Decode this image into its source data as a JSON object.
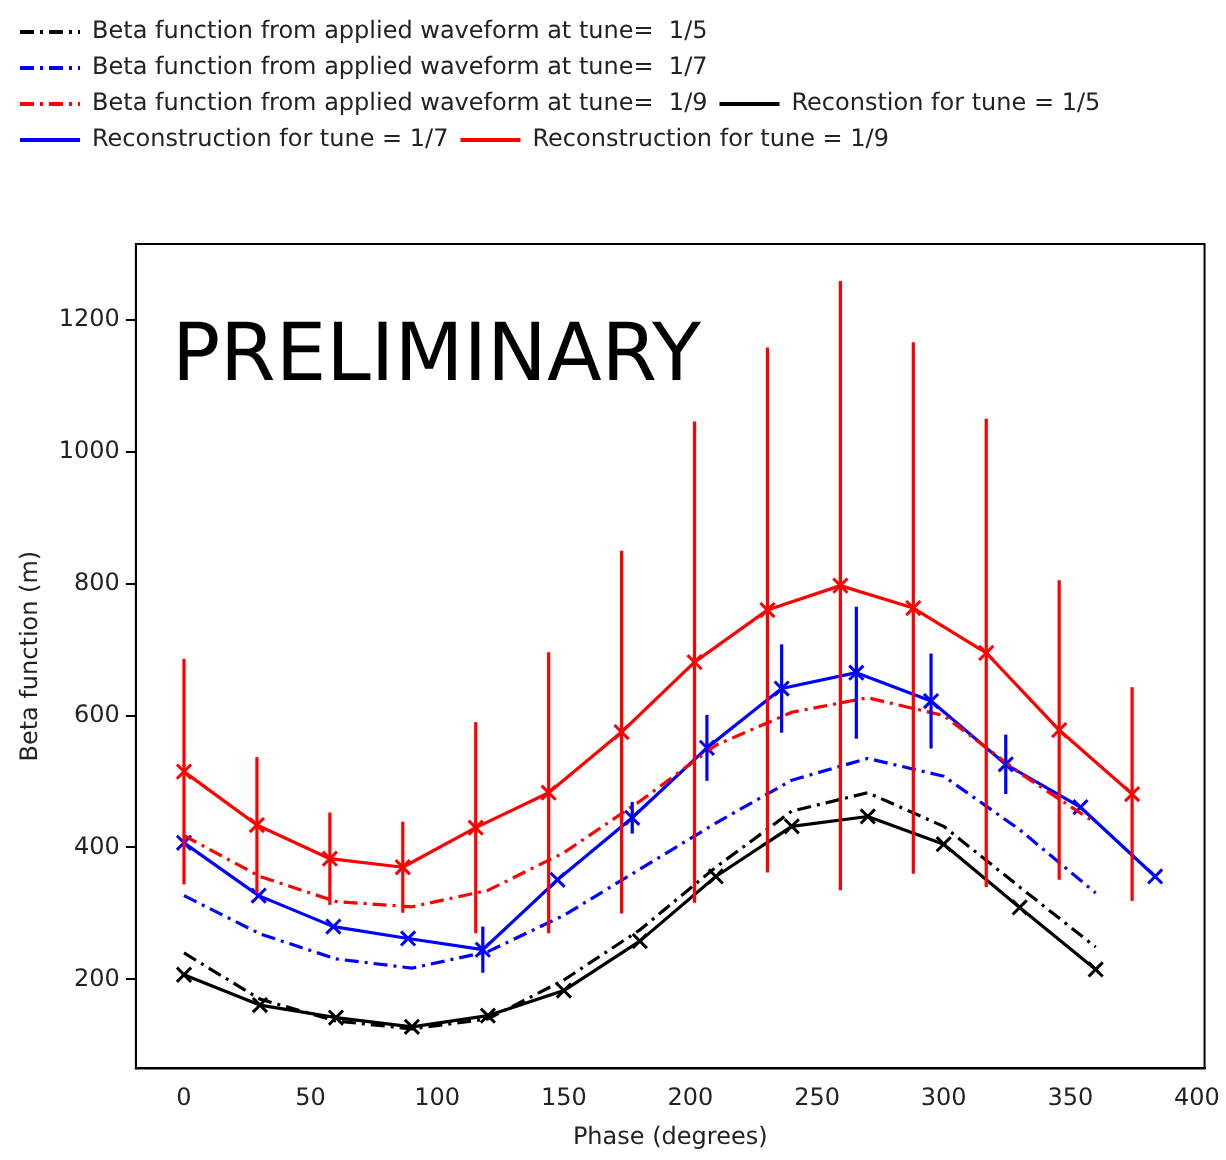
{
  "chart_data": {
    "type": "line",
    "xlabel": "Phase (degrees)",
    "ylabel": "Beta function (m)",
    "xlim": [
      -19,
      403
    ],
    "ylim": [
      65,
      1315
    ],
    "xticks": [
      0,
      50,
      100,
      150,
      200,
      250,
      300,
      350,
      400
    ],
    "yticks": [
      200,
      400,
      600,
      800,
      1000,
      1200
    ],
    "grid": false,
    "legend": "top",
    "annotations": [
      "PRELIMINARY"
    ],
    "series": [
      {
        "name": "Beta function from applied waveform at tune=  1/5",
        "color": "#000000",
        "line_style": "dashed",
        "marker": "none",
        "x": [
          0,
          30,
          60,
          90,
          120,
          150,
          180,
          210,
          240,
          270,
          300,
          330,
          360
        ],
        "values": [
          240,
          170,
          137,
          125,
          140,
          199,
          275,
          370,
          455,
          483,
          432,
          340,
          249
        ]
      },
      {
        "name": "Beta function from applied waveform at tune=  1/7",
        "color": "#0000ff",
        "line_style": "dashed",
        "marker": "none",
        "x": [
          0,
          30,
          60,
          90,
          120,
          150,
          180,
          210,
          240,
          270,
          300,
          330,
          360
        ],
        "values": [
          327,
          269,
          231,
          217,
          242,
          297,
          367,
          437,
          502,
          535,
          508,
          427,
          331
        ]
      },
      {
        "name": "Beta function from applied waveform at tune=  1/9",
        "color": "#ff0000",
        "line_style": "dashed",
        "marker": "none",
        "x": [
          0,
          30,
          60,
          90,
          120,
          150,
          180,
          210,
          240,
          270,
          300,
          330,
          360
        ],
        "values": [
          418,
          356,
          318,
          310,
          335,
          392,
          470,
          555,
          605,
          627,
          600,
          513,
          437
        ]
      },
      {
        "name": "Reconstion for tune = 1/5",
        "color": "#000000",
        "line_style": "solid",
        "marker": "cross",
        "x": [
          0,
          30,
          60,
          90,
          120,
          150,
          180,
          210,
          240,
          270,
          300,
          330,
          360
        ],
        "values": [
          207,
          161,
          142,
          128,
          145,
          183,
          258,
          356,
          432,
          447,
          405,
          309,
          215
        ]
      },
      {
        "name": "Reconstruction for tune = 1/7",
        "color": "#0000ff",
        "line_style": "solid",
        "marker": "cross",
        "x": [
          0,
          29.5,
          59,
          88.5,
          118,
          147.5,
          177,
          206.5,
          236,
          265.5,
          295,
          324.5,
          354,
          383.5
        ],
        "values": [
          407,
          327,
          280,
          262,
          245,
          351,
          445,
          551,
          641,
          665,
          622,
          526,
          461,
          356
        ],
        "errors": [
          null,
          null,
          null,
          null,
          35,
          null,
          24,
          50,
          67,
          100,
          72,
          45,
          null,
          null
        ]
      },
      {
        "name": "Reconstruction for tune = 1/9",
        "color": "#ff0000",
        "line_style": "solid",
        "marker": "cross",
        "x": [
          0,
          28.8,
          57.6,
          86.4,
          115.2,
          144,
          172.8,
          201.6,
          230.4,
          259.2,
          288,
          316.8,
          345.6,
          374.4
        ],
        "values": [
          515,
          434,
          383,
          370,
          430,
          483,
          575,
          681,
          760,
          797,
          763,
          695,
          578,
          481
        ],
        "errors": [
          171,
          103,
          70,
          69,
          160,
          213,
          275,
          365,
          398,
          462,
          403,
          355,
          227,
          162
        ]
      }
    ]
  }
}
